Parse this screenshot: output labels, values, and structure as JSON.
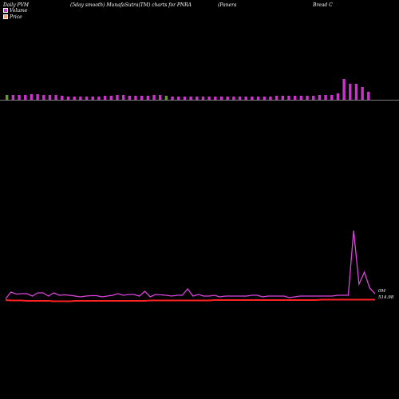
{
  "header": {
    "left": "Daily PVM",
    "middle": "(5day smooth) MunafaSutra(TM) charts for PNRA",
    "right_1": "(Panera",
    "right_2": "Bread C"
  },
  "legend": [
    {
      "label": "Volume",
      "color": "#cc33cc"
    },
    {
      "label": "Price",
      "color": "#ff9966"
    }
  ],
  "colors": {
    "volume_bar": "#cc33cc",
    "volume_bar_down": "#669933",
    "pvm_line": "#dd44dd",
    "price_line": "#ff2222",
    "baseline": "#aaaaaa"
  },
  "chart_data": {
    "type": "bar+line",
    "title": "(5day smooth) MunafaSutra(TM) charts for PNRA",
    "volume": {
      "name": "Volume",
      "values": [
        3,
        3,
        3,
        3,
        3.5,
        3.5,
        3,
        3,
        3,
        2.5,
        2,
        2,
        2,
        2,
        2,
        2,
        2.5,
        2.5,
        3,
        3,
        2.5,
        2.5,
        2.5,
        2.5,
        3,
        3,
        2.5,
        2,
        2,
        2,
        2,
        2,
        2,
        2,
        2,
        2,
        2,
        2,
        2,
        2,
        2,
        2,
        2,
        2,
        2.5,
        2.5,
        2.5,
        2.5,
        2.5,
        2.5,
        2.5,
        3,
        3,
        3,
        4,
        13,
        10,
        10,
        8,
        5
      ]
    },
    "pvm": {
      "name": "Volume",
      "values": [
        1.5,
        10,
        7.5,
        8,
        8,
        5,
        9,
        9,
        5,
        9,
        6,
        6.5,
        6,
        5,
        4,
        5,
        5.5,
        5.5,
        4,
        5,
        6,
        8,
        6,
        7,
        7,
        5,
        11,
        4,
        7,
        6.5,
        6,
        5,
        6,
        6,
        14,
        5,
        7,
        5,
        5,
        6,
        4,
        5,
        5,
        5,
        5,
        5,
        6,
        6,
        4,
        5,
        5,
        5,
        5,
        3,
        4,
        5,
        5,
        5,
        5,
        5,
        5,
        5,
        6,
        6,
        6,
        87,
        20,
        35,
        15,
        8
      ]
    },
    "price": {
      "name": "Price",
      "values": [
        1,
        0.5,
        0.5,
        0.5,
        0,
        0,
        0,
        0,
        0,
        -0.5,
        -0.5,
        -0.5,
        -0.5,
        0,
        0,
        0,
        0,
        0,
        0,
        0,
        0,
        0,
        0,
        0,
        0,
        0,
        0,
        0.5,
        0.5,
        0.5,
        0.5,
        0.5,
        0.5,
        0.5,
        0.5,
        0.5,
        0.5,
        0.5,
        0.5,
        1,
        1,
        1,
        1,
        1,
        1,
        1,
        1,
        1,
        1,
        1,
        1,
        1,
        1,
        1,
        1,
        1,
        1,
        1,
        1,
        1.5,
        1.5,
        1.5,
        1.5,
        1.5,
        1.5,
        1.5,
        1.5,
        1.5,
        1.5,
        1.5
      ]
    },
    "right_labels": {
      "top": "0M",
      "bottom": "514.98"
    }
  }
}
